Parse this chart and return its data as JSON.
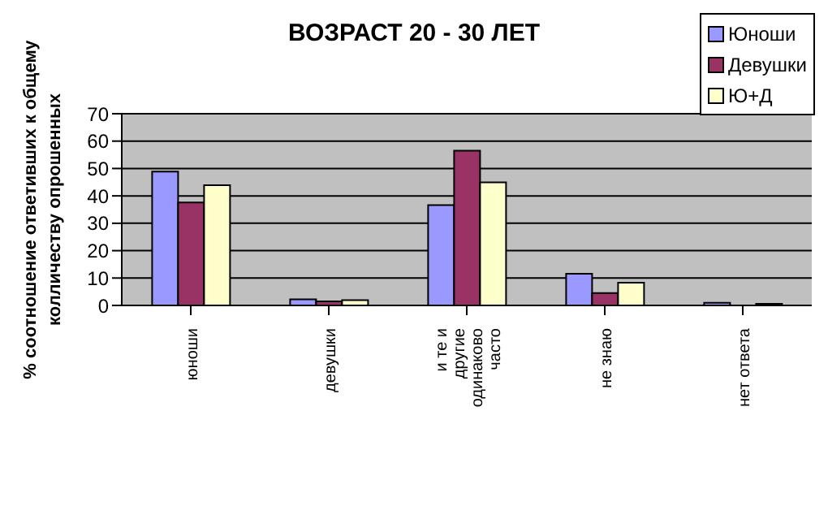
{
  "chart_data": {
    "type": "bar",
    "title": "ВОЗРАСТ 20 - 30 ЛЕТ",
    "ylabel": "% соотношение ответивших к общему колличеству опрошенных",
    "categories": [
      "юноши",
      "девушки",
      "и те и другие одинаково часто",
      "не знаю",
      "нет ответа"
    ],
    "series": [
      {
        "name": "Юноши",
        "color": "#9999ff",
        "values": [
          48.9,
          2.2,
          36.6,
          11.6,
          1.0
        ]
      },
      {
        "name": "Девушки",
        "color": "#993366",
        "values": [
          37.6,
          1.5,
          56.5,
          4.5,
          0
        ]
      },
      {
        "name": "Ю+Д",
        "color": "#ffffcc",
        "values": [
          43.9,
          1.9,
          44.9,
          8.3,
          0.6
        ]
      }
    ],
    "ylim": [
      0,
      70
    ],
    "yticks": [
      0,
      10,
      20,
      30,
      40,
      50,
      60,
      70
    ],
    "grid": "y",
    "legend": "top right"
  }
}
